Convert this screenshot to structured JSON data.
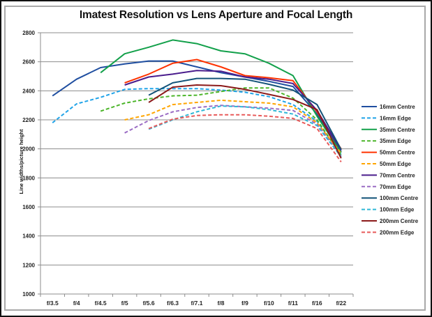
{
  "chart_data": {
    "type": "line",
    "title": "Imatest Resolution vs Lens Aperture and Focal Length",
    "xlabel": "",
    "ylabel": "Line widths/picture height",
    "ylim": [
      1000,
      2800
    ],
    "yticks": [
      1000,
      1200,
      1400,
      1600,
      1800,
      2000,
      2200,
      2400,
      2600,
      2800
    ],
    "grid": true,
    "legend_position": "right",
    "categories": [
      "f/3.5",
      "f/4",
      "f/4.5",
      "f/5",
      "f/5.6",
      "f/6.3",
      "f/7.1",
      "f/8",
      "f/9",
      "f/10",
      "f/11",
      "f/16",
      "f/22"
    ],
    "series": [
      {
        "name": "16mm Centre",
        "color": "#1f4ea0",
        "dashed": false,
        "values": [
          2365,
          2480,
          2560,
          2585,
          2605,
          2605,
          2565,
          2525,
          2495,
          2465,
          2430,
          2240,
          1980
        ]
      },
      {
        "name": "16mm Edge",
        "color": "#1fa3e8",
        "dashed": true,
        "values": [
          2180,
          2310,
          2355,
          2410,
          2415,
          2415,
          2415,
          2405,
          2390,
          2360,
          2305,
          2190,
          1960
        ]
      },
      {
        "name": "35mm Centre",
        "color": "#12a04a",
        "dashed": false,
        "values": [
          null,
          null,
          2525,
          2655,
          2700,
          2750,
          2725,
          2675,
          2655,
          2590,
          2505,
          2225,
          1975
        ]
      },
      {
        "name": "35mm Edge",
        "color": "#4cb52a",
        "dashed": true,
        "values": [
          null,
          null,
          2260,
          2315,
          2345,
          2365,
          2370,
          2395,
          2420,
          2420,
          2350,
          2200,
          1955
        ]
      },
      {
        "name": "50mm Centre",
        "color": "#ff3300",
        "dashed": false,
        "values": [
          null,
          null,
          null,
          2455,
          2515,
          2590,
          2615,
          2565,
          2505,
          2490,
          2470,
          2255,
          2000
        ]
      },
      {
        "name": "50mm Edge",
        "color": "#ffa500",
        "dashed": true,
        "values": [
          null,
          null,
          null,
          2200,
          2235,
          2305,
          2320,
          2335,
          2325,
          2315,
          2290,
          2180,
          1970
        ]
      },
      {
        "name": "70mm Centre",
        "color": "#4a1c8c",
        "dashed": false,
        "values": [
          null,
          null,
          null,
          2440,
          2495,
          2515,
          2540,
          2535,
          2495,
          2480,
          2450,
          2265,
          1990
        ]
      },
      {
        "name": "70mm Edge",
        "color": "#9a6cc4",
        "dashed": true,
        "values": [
          null,
          null,
          null,
          2110,
          2195,
          2255,
          2285,
          2300,
          2290,
          2280,
          2265,
          2170,
          1950
        ]
      },
      {
        "name": "100mm Centre",
        "color": "#135379",
        "dashed": false,
        "values": [
          null,
          null,
          null,
          null,
          2370,
          2455,
          2485,
          2485,
          2480,
          2445,
          2405,
          2305,
          1995
        ]
      },
      {
        "name": "100mm Edge",
        "color": "#2fb7d6",
        "dashed": true,
        "values": [
          null,
          null,
          null,
          null,
          2135,
          2200,
          2255,
          2295,
          2290,
          2270,
          2240,
          2160,
          1945
        ]
      },
      {
        "name": "200mm Centre",
        "color": "#8b1a1a",
        "dashed": false,
        "values": [
          null,
          null,
          null,
          null,
          2320,
          2425,
          2440,
          2435,
          2410,
          2375,
          2340,
          2270,
          1935
        ]
      },
      {
        "name": "200mm Edge",
        "color": "#e85a5a",
        "dashed": true,
        "values": [
          null,
          null,
          null,
          null,
          2140,
          2205,
          2230,
          2235,
          2235,
          2225,
          2210,
          2140,
          1910
        ]
      }
    ]
  }
}
